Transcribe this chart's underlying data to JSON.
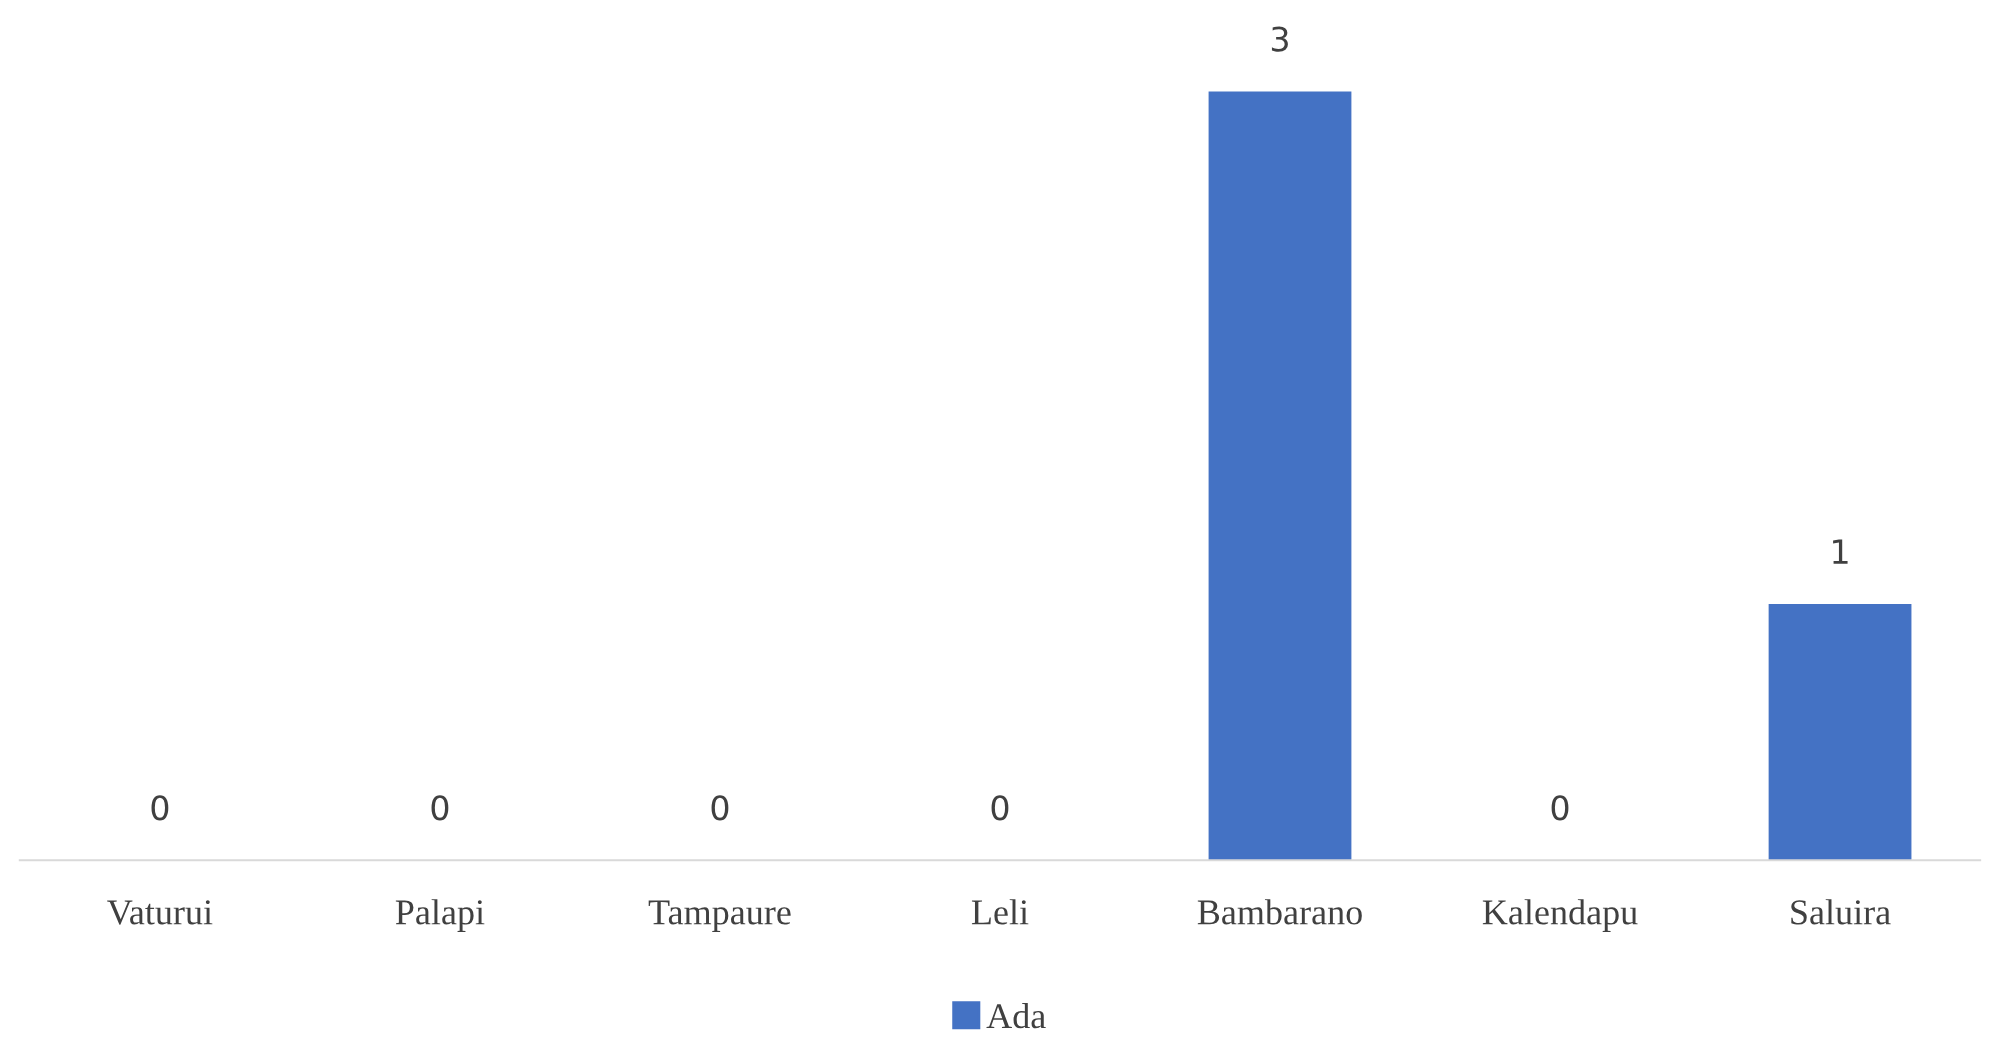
{
  "chart_data": {
    "type": "bar",
    "categories": [
      "Vaturui",
      "Palapi",
      "Tampaure",
      "Leli",
      "Bambarano",
      "Kalendapu",
      "Saluira"
    ],
    "series": [
      {
        "name": "Ada",
        "color": "#4472c4",
        "values": [
          0,
          0,
          0,
          0,
          3,
          0,
          1
        ]
      }
    ],
    "data_labels": true,
    "grid": false,
    "legend": "bottom"
  }
}
